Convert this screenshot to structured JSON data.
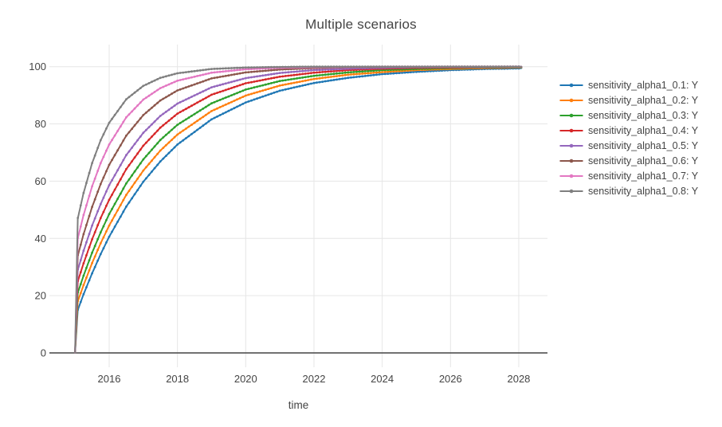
{
  "chart_data": {
    "type": "line",
    "title": "Multiple scenarios",
    "xlabel": "time",
    "ylabel": "",
    "legend_position": "right",
    "grid": true,
    "background_color": "#ffffff",
    "grid_color": "#e6e6e6",
    "zeroline_color": "#444444",
    "text_color": "#444444",
    "xlim": [
      2014.3,
      2028.9
    ],
    "ylim": [
      -5,
      107
    ],
    "x_ticks": [
      2016,
      2018,
      2020,
      2022,
      2024,
      2026,
      2028
    ],
    "y_ticks": [
      0,
      20,
      40,
      60,
      80,
      100
    ],
    "x": [
      2015,
      2015.08,
      2015.25,
      2015.5,
      2015.75,
      2016,
      2016.5,
      2017,
      2017.5,
      2018,
      2019,
      2020,
      2021,
      2022,
      2023,
      2024,
      2025,
      2026,
      2027,
      2028,
      2028.08
    ],
    "series": [
      {
        "name": "sensitivity_alpha1_0.1: Y",
        "color": "#1f77b4",
        "values": [
          0,
          15.0,
          20.5,
          27.8,
          34.5,
          40.6,
          51.1,
          59.8,
          66.9,
          72.8,
          81.6,
          87.5,
          91.6,
          94.3,
          96.1,
          97.4,
          98.2,
          98.8,
          99.2,
          99.4,
          99.5
        ]
      },
      {
        "name": "sensitivity_alpha1_0.2: Y",
        "color": "#ff7f0e",
        "values": [
          0,
          18.0,
          23.7,
          31.4,
          38.3,
          44.5,
          55.2,
          63.7,
          70.7,
          76.3,
          84.5,
          89.9,
          93.4,
          95.7,
          97.2,
          98.1,
          98.8,
          99.2,
          99.5,
          99.7,
          99.7
        ]
      },
      {
        "name": "sensitivity_alpha1_0.3: Y",
        "color": "#2ca02c",
        "values": [
          0,
          21.0,
          27.0,
          35.0,
          42.1,
          48.5,
          59.2,
          67.6,
          74.4,
          79.7,
          87.2,
          92.0,
          95.0,
          96.8,
          98.0,
          98.8,
          99.2,
          99.5,
          99.7,
          99.8,
          99.8
        ]
      },
      {
        "name": "sensitivity_alpha1_0.4: Y",
        "color": "#d62728",
        "values": [
          0,
          25.0,
          31.3,
          39.7,
          47.1,
          53.5,
          64.2,
          72.4,
          78.7,
          83.6,
          90.2,
          94.2,
          96.5,
          97.9,
          98.8,
          99.3,
          99.6,
          99.7,
          99.8,
          99.9,
          99.9
        ]
      },
      {
        "name": "sensitivity_alpha1_0.5: Y",
        "color": "#9467bd",
        "values": [
          0,
          29.0,
          35.7,
          44.5,
          52.0,
          58.6,
          69.1,
          76.9,
          82.8,
          87.1,
          92.8,
          96.0,
          97.8,
          98.8,
          99.3,
          99.6,
          99.8,
          99.9,
          99.9,
          100,
          100
        ]
      },
      {
        "name": "sensitivity_alpha1_0.6: Y",
        "color": "#8c564b",
        "values": [
          0,
          34.0,
          41.5,
          51.0,
          59.0,
          65.7,
          75.9,
          83.1,
          88.2,
          91.7,
          95.9,
          98.0,
          99.0,
          99.5,
          99.8,
          99.9,
          99.9,
          100,
          100,
          100,
          100
        ]
      },
      {
        "name": "sensitivity_alpha1_0.7: Y",
        "color": "#e377c2",
        "values": [
          0,
          40.0,
          48.2,
          58.2,
          66.3,
          72.8,
          82.3,
          88.5,
          92.5,
          95.1,
          97.9,
          99.1,
          99.6,
          99.8,
          99.9,
          100,
          100,
          100,
          100,
          100,
          100
        ]
      },
      {
        "name": "sensitivity_alpha1_0.8: Y",
        "color": "#7f7f7f",
        "values": [
          0,
          47.0,
          55.9,
          66.3,
          74.3,
          80.4,
          88.6,
          93.3,
          96.1,
          97.7,
          99.2,
          99.7,
          99.9,
          100,
          100,
          100,
          100,
          100,
          100,
          100,
          100
        ]
      }
    ]
  }
}
